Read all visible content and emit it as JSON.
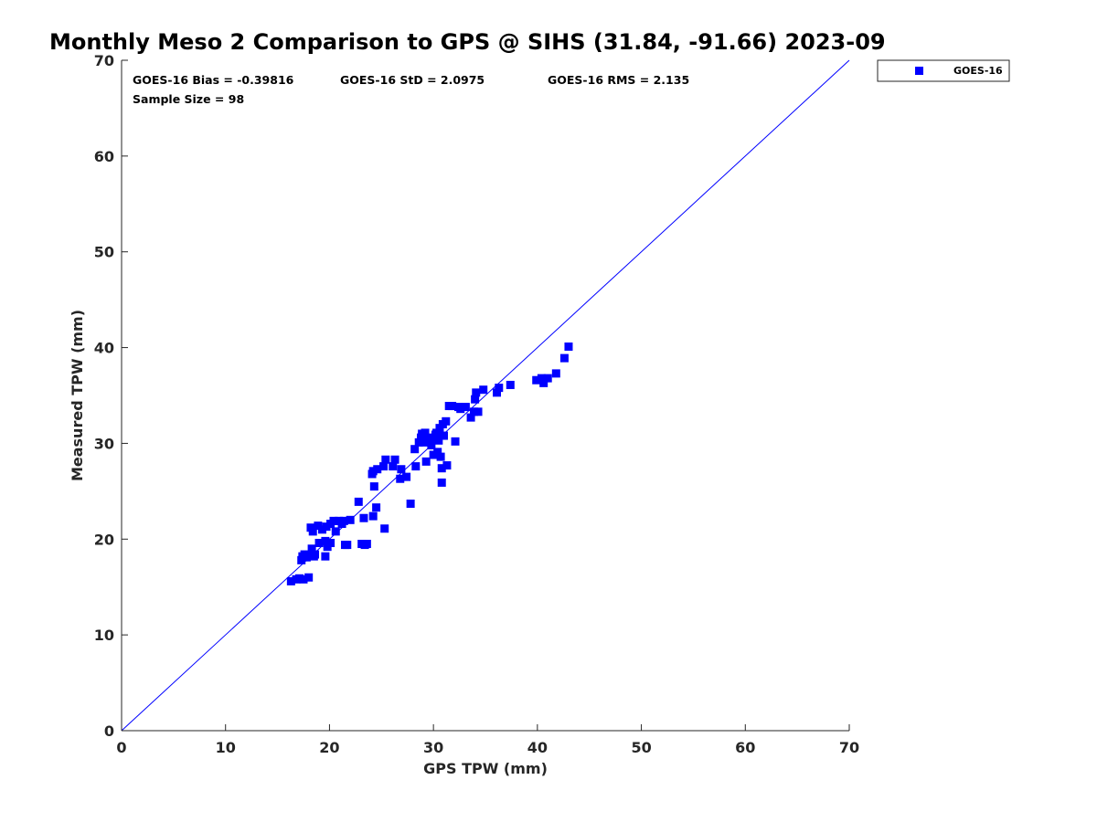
{
  "chart_data": {
    "type": "scatter",
    "title": "Monthly Meso 2 Comparison to GPS @ SIHS (31.84, -91.66) 2023-09",
    "xlabel": "GPS TPW (mm)",
    "ylabel": "Measured TPW (mm)",
    "xlim": [
      0,
      70
    ],
    "ylim": [
      0,
      70
    ],
    "x_ticks": [
      "0",
      "10",
      "20",
      "30",
      "40",
      "50",
      "60",
      "70"
    ],
    "y_ticks": [
      "0",
      "10",
      "20",
      "30",
      "40",
      "50",
      "60",
      "70"
    ],
    "grid": false,
    "legend_position": "outside top-right",
    "stats": {
      "bias": "GOES-16 Bias = -0.39816",
      "std": "GOES-16 StD = 2.0975",
      "rms": "GOES-16 RMS = 2.135",
      "sample_size": "Sample Size = 98"
    },
    "reference_line": {
      "from": [
        0,
        0
      ],
      "to": [
        70,
        70
      ]
    },
    "series": [
      {
        "name": "GOES-16",
        "color": "#0000ff",
        "marker": "square",
        "points": [
          [
            16.3,
            15.6
          ],
          [
            16.8,
            15.8
          ],
          [
            17.1,
            15.9
          ],
          [
            17.5,
            15.8
          ],
          [
            18.0,
            16.0
          ],
          [
            17.3,
            17.8
          ],
          [
            17.4,
            18.2
          ],
          [
            17.6,
            18.4
          ],
          [
            17.8,
            18.1
          ],
          [
            18.1,
            18.3
          ],
          [
            18.5,
            18.2
          ],
          [
            18.6,
            18.4
          ],
          [
            18.3,
            19.0
          ],
          [
            19.0,
            19.6
          ],
          [
            19.6,
            18.2
          ],
          [
            19.8,
            19.2
          ],
          [
            19.6,
            19.8
          ],
          [
            20.1,
            19.6
          ],
          [
            18.2,
            21.2
          ],
          [
            18.4,
            20.8
          ],
          [
            18.9,
            21.4
          ],
          [
            19.3,
            21.0
          ],
          [
            19.7,
            21.3
          ],
          [
            20.1,
            21.6
          ],
          [
            20.4,
            21.9
          ],
          [
            20.6,
            20.8
          ],
          [
            20.9,
            21.9
          ],
          [
            21.2,
            21.6
          ],
          [
            21.4,
            21.9
          ],
          [
            21.5,
            19.4
          ],
          [
            21.7,
            19.4
          ],
          [
            22.0,
            22.0
          ],
          [
            22.8,
            23.9
          ],
          [
            23.1,
            19.5
          ],
          [
            23.3,
            22.2
          ],
          [
            23.4,
            19.4
          ],
          [
            23.6,
            19.5
          ],
          [
            24.1,
            26.8
          ],
          [
            24.2,
            27.1
          ],
          [
            24.3,
            25.5
          ],
          [
            24.2,
            22.4
          ],
          [
            24.5,
            23.3
          ],
          [
            24.6,
            27.3
          ],
          [
            25.2,
            27.6
          ],
          [
            25.3,
            21.1
          ],
          [
            25.4,
            28.3
          ],
          [
            26.1,
            27.6
          ],
          [
            26.3,
            28.3
          ],
          [
            26.8,
            26.3
          ],
          [
            26.9,
            27.3
          ],
          [
            27.4,
            26.5
          ],
          [
            27.8,
            23.7
          ],
          [
            28.2,
            29.4
          ],
          [
            28.3,
            27.6
          ],
          [
            28.6,
            30.1
          ],
          [
            28.8,
            30.6
          ],
          [
            28.9,
            31.0
          ],
          [
            29.1,
            30.1
          ],
          [
            29.2,
            31.1
          ],
          [
            29.3,
            28.1
          ],
          [
            29.5,
            30.6
          ],
          [
            29.6,
            30.2
          ],
          [
            29.8,
            29.8
          ],
          [
            29.9,
            30.4
          ],
          [
            30.0,
            28.8
          ],
          [
            30.2,
            30.9
          ],
          [
            30.3,
            31.1
          ],
          [
            30.4,
            29.1
          ],
          [
            30.5,
            30.3
          ],
          [
            30.6,
            31.6
          ],
          [
            30.7,
            28.6
          ],
          [
            30.8,
            27.4
          ],
          [
            30.8,
            25.9
          ],
          [
            30.9,
            32.0
          ],
          [
            31.0,
            30.8
          ],
          [
            31.2,
            32.3
          ],
          [
            31.3,
            27.7
          ],
          [
            31.5,
            33.9
          ],
          [
            31.8,
            33.9
          ],
          [
            32.1,
            30.2
          ],
          [
            32.4,
            33.8
          ],
          [
            32.6,
            33.6
          ],
          [
            33.1,
            33.8
          ],
          [
            33.6,
            32.7
          ],
          [
            33.9,
            33.3
          ],
          [
            34.0,
            34.6
          ],
          [
            34.1,
            35.3
          ],
          [
            34.3,
            33.3
          ],
          [
            34.8,
            35.6
          ],
          [
            36.1,
            35.3
          ],
          [
            36.3,
            35.8
          ],
          [
            37.4,
            36.1
          ],
          [
            39.9,
            36.6
          ],
          [
            40.4,
            36.8
          ],
          [
            40.6,
            36.3
          ],
          [
            41.0,
            36.8
          ],
          [
            41.8,
            37.3
          ],
          [
            42.6,
            38.9
          ]
        ]
      }
    ],
    "extra_point": [
      43.0,
      40.1
    ]
  }
}
